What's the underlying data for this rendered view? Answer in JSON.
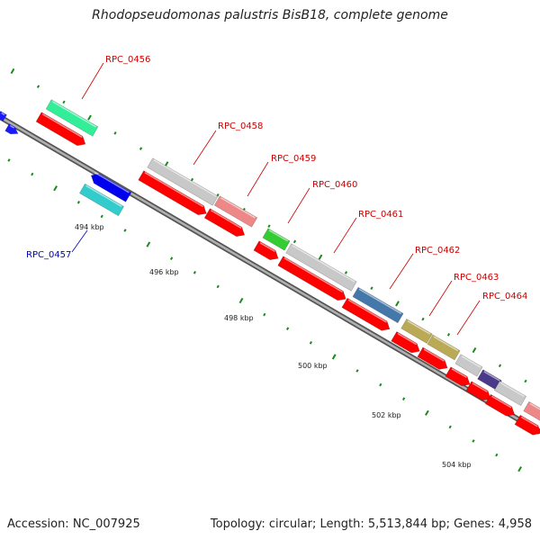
{
  "title": "Rhodopseudomonas palustris BisB18, complete genome",
  "footer": {
    "accession": "Accession: NC_007925",
    "summary": "Topology: circular; Length: 5,513,844 bp; Genes: 4,958"
  },
  "colors": {
    "backbone": "#888888",
    "cds_red": "#ff0000",
    "tick_green": "#1a8a1a",
    "label_red": "#cc0000",
    "label_blue": "#0000bb"
  },
  "gene_labels": [
    {
      "id": "RPC_0456",
      "text": "RPC_0456",
      "color": "red"
    },
    {
      "id": "RPC_0457",
      "text": "RPC_0457",
      "color": "blue"
    },
    {
      "id": "RPC_0458",
      "text": "RPC_0458",
      "color": "red"
    },
    {
      "id": "RPC_0459",
      "text": "RPC_0459",
      "color": "red"
    },
    {
      "id": "RPC_0460",
      "text": "RPC_0460",
      "color": "red"
    },
    {
      "id": "RPC_0461",
      "text": "RPC_0461",
      "color": "red"
    },
    {
      "id": "RPC_0462",
      "text": "RPC_0462",
      "color": "red"
    },
    {
      "id": "RPC_0463",
      "text": "RPC_0463",
      "color": "red"
    },
    {
      "id": "RPC_0464",
      "text": "RPC_0464",
      "color": "red"
    }
  ],
  "scale_labels": [
    "494 kbp",
    "496 kbp",
    "498 kbp",
    "500 kbp",
    "502 kbp",
    "504 kbp"
  ]
}
